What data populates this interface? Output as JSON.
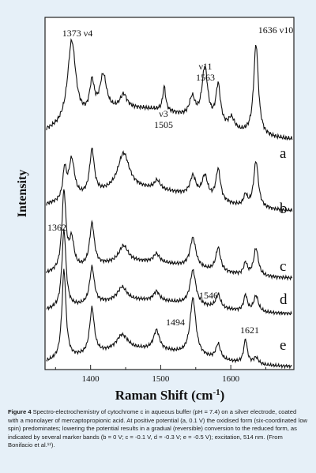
{
  "chart_data": {
    "type": "line",
    "xlabel": "Raman Shift (cm⁻¹)",
    "ylabel": "Intensity",
    "xlim": [
      1335,
      1690
    ],
    "xticks": [
      "1400",
      "1500",
      "1600"
    ],
    "tick_values": [
      1400,
      1500,
      1600
    ],
    "series": [
      {
        "name": "a",
        "offset": 4.0
      },
      {
        "name": "b",
        "offset": 3.0
      },
      {
        "name": "c",
        "offset": 2.0
      },
      {
        "name": "d",
        "offset": 1.0
      },
      {
        "name": "e",
        "offset": 0.0
      }
    ],
    "peaks": [
      {
        "series": "a",
        "x": 1373,
        "label": "1373 ν4"
      },
      {
        "series": "a",
        "x": 1505,
        "label": "ν3\n1505"
      },
      {
        "series": "a",
        "x": 1563,
        "label": "ν11\n1563"
      },
      {
        "series": "a",
        "x": 1636,
        "label": "1636 ν10"
      },
      {
        "series": "c",
        "x": 1362,
        "label": "1362"
      },
      {
        "series": "e",
        "x": 1494,
        "label": "1494"
      },
      {
        "series": "e",
        "x": 1546,
        "label": "1546"
      },
      {
        "series": "e",
        "x": 1621,
        "label": "1621"
      }
    ]
  },
  "caption": {
    "label": "Figure 4",
    "text": "Spectro-electrochemistry of cytochrome c in aqueous buffer (pH = 7.4) on a silver electrode, coated with a monolayer of mercaptopropionic acid. At positive potential (a, 0.1 V) the oxidised form (six-coordinated low spin) predominates; lowering the potential results in a gradual (reversible) conversion to the reduced form, as indicated by several marker bands (b = 0 V; c = -0.1 V, d = -0.3 V; e = -0.5 V); excitation, 514 nm. (From Bonifacio et al.¹¹)."
  }
}
